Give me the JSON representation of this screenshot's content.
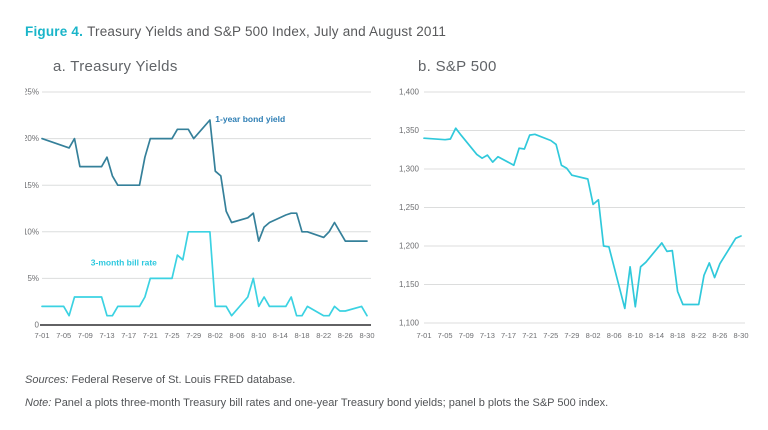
{
  "figure": {
    "label": "Figure 4.",
    "title": "Treasury Yields and S&P 500 Index, July and August 2011"
  },
  "footer": {
    "sources_label": "Sources:",
    "sources_text": " Federal Reserve of St. Louis FRED database.",
    "note_label": "Note:",
    "note_text": " Panel a plots three-month Treasury bill rates and one-year Treasury bond yields; panel b plots the S&P 500 index."
  },
  "colors": {
    "accent": "#1ab5c9",
    "grid": "#dcdddd",
    "axis": "#2f2f30",
    "label_gray": "#6d6e71",
    "bond_line": "#35809a",
    "bill_line": "#3bd2e2",
    "sp500_line": "#30c9db",
    "bond_label": "#2d7eb4",
    "bill_label": "#2cc8de"
  },
  "chart_data": [
    {
      "type": "line",
      "title": "a. Treasury Yields",
      "xlabel": "",
      "ylabel": "",
      "grid": true,
      "zero_axis": true,
      "legend_position": "inline-annotations",
      "ylim": [
        0,
        25
      ],
      "yticks": [
        {
          "v": 25,
          "label": "25%"
        },
        {
          "v": 20,
          "label": "20%"
        },
        {
          "v": 15,
          "label": "15%"
        },
        {
          "v": 10,
          "label": "10%"
        },
        {
          "v": 5,
          "label": "5%"
        },
        {
          "v": 0,
          "label": "0"
        }
      ],
      "x_tick_labels": [
        "7-01",
        "7-05",
        "7-09",
        "7-13",
        "7-17",
        "7-21",
        "7-25",
        "7-29",
        "8-02",
        "8-06",
        "8-10",
        "8-14",
        "8-18",
        "8-22",
        "8-26",
        "8-30"
      ],
      "x": [
        "7-01",
        "7-05",
        "7-06",
        "7-07",
        "7-08",
        "7-11",
        "7-12",
        "7-13",
        "7-14",
        "7-15",
        "7-18",
        "7-19",
        "7-20",
        "7-21",
        "7-22",
        "7-25",
        "7-26",
        "7-27",
        "7-28",
        "7-29",
        "8-01",
        "8-02",
        "8-03",
        "8-04",
        "8-05",
        "8-08",
        "8-09",
        "8-10",
        "8-11",
        "8-12",
        "8-15",
        "8-16",
        "8-17",
        "8-18",
        "8-19",
        "8-22",
        "8-23",
        "8-24",
        "8-25",
        "8-26",
        "8-29",
        "8-30"
      ],
      "series": [
        {
          "name": "1-year bond yield",
          "color": "#35809a",
          "values": [
            20,
            19.2,
            19,
            20,
            17,
            17,
            17,
            18,
            16,
            15,
            15,
            15,
            18,
            20,
            20,
            20,
            21,
            21,
            21,
            20,
            22,
            16.5,
            16,
            12.2,
            11,
            11.5,
            12,
            9,
            10.5,
            11,
            11.8,
            12,
            12,
            10,
            10,
            9.4,
            10,
            11,
            10,
            9,
            9,
            9
          ]
        },
        {
          "name": "3-month bill rate",
          "color": "#3bd2e2",
          "values": [
            2,
            2,
            1,
            3,
            3,
            3,
            3,
            1,
            1,
            2,
            2,
            2,
            3,
            5,
            5,
            5,
            7.5,
            7,
            10,
            10,
            10,
            2,
            2,
            2,
            1,
            3,
            5,
            2,
            3,
            2,
            2,
            3,
            1,
            1,
            2,
            1,
            1,
            2,
            1.5,
            1.5,
            2,
            1
          ]
        }
      ],
      "annotations": [
        {
          "text": "1-year bond yield",
          "date": "8-02",
          "value": 21.8,
          "color": "#2d7eb4"
        },
        {
          "text": "3-month bill rate",
          "date": "7-10",
          "value": 6.4,
          "color": "#2cc8de"
        }
      ]
    },
    {
      "type": "line",
      "title": "b. S&P 500",
      "xlabel": "",
      "ylabel": "",
      "grid": true,
      "zero_axis": false,
      "legend_position": "none",
      "ylim": [
        1100,
        1400
      ],
      "yticks": [
        {
          "v": 1400,
          "label": "1,400"
        },
        {
          "v": 1350,
          "label": "1,350"
        },
        {
          "v": 1300,
          "label": "1,300"
        },
        {
          "v": 1250,
          "label": "1,250"
        },
        {
          "v": 1200,
          "label": "1,200"
        },
        {
          "v": 1150,
          "label": "1,150"
        },
        {
          "v": 1100,
          "label": "1,100"
        }
      ],
      "x_tick_labels": [
        "7-01",
        "7-05",
        "7-09",
        "7-13",
        "7-17",
        "7-21",
        "7-25",
        "7-29",
        "8-02",
        "8-06",
        "8-10",
        "8-14",
        "8-18",
        "8-22",
        "8-26",
        "8-30"
      ],
      "x": [
        "7-01",
        "7-05",
        "7-06",
        "7-07",
        "7-08",
        "7-11",
        "7-12",
        "7-13",
        "7-14",
        "7-15",
        "7-18",
        "7-19",
        "7-20",
        "7-21",
        "7-22",
        "7-25",
        "7-26",
        "7-27",
        "7-28",
        "7-29",
        "8-01",
        "8-02",
        "8-03",
        "8-04",
        "8-05",
        "8-08",
        "8-09",
        "8-10",
        "8-11",
        "8-12",
        "8-15",
        "8-16",
        "8-17",
        "8-18",
        "8-19",
        "8-22",
        "8-23",
        "8-24",
        "8-25",
        "8-26",
        "8-29",
        "8-30"
      ],
      "series": [
        {
          "name": "S&P 500",
          "color": "#30c9db",
          "values": [
            1340,
            1338,
            1339,
            1353,
            1344,
            1319,
            1314,
            1318,
            1309,
            1316,
            1305,
            1327,
            1326,
            1344,
            1345,
            1337,
            1332,
            1305,
            1301,
            1292,
            1287,
            1254,
            1260,
            1200,
            1199,
            1119,
            1173,
            1121,
            1173,
            1179,
            1204,
            1193,
            1194,
            1141,
            1124,
            1124,
            1162,
            1178,
            1159,
            1177,
            1210,
            1213
          ]
        }
      ],
      "annotations": []
    }
  ]
}
